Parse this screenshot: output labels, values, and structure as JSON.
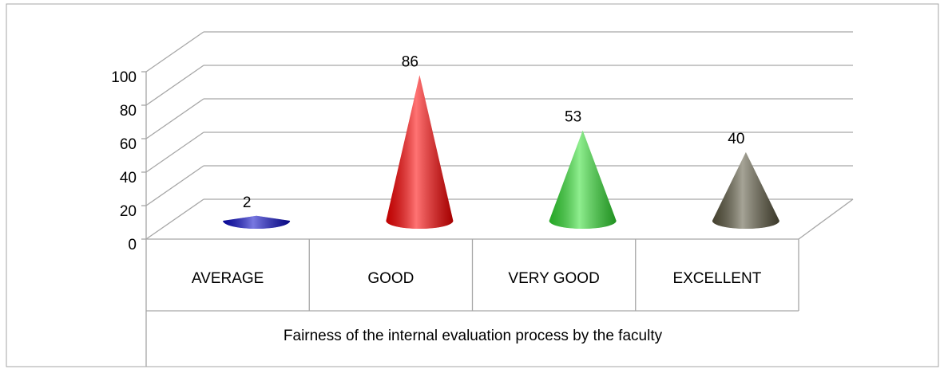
{
  "chart_data": {
    "type": "cone3d",
    "x_label": "Fairness of the internal evaluation process by the faculty",
    "categories": [
      "AVERAGE",
      "GOOD",
      "VERY GOOD",
      "EXCELLENT"
    ],
    "values": [
      2,
      86,
      53,
      40
    ],
    "colors": [
      "#0a0ac8",
      "#ff0000",
      "#33e033",
      "#5c5840"
    ],
    "ylim": [
      0,
      100
    ],
    "yticks": [
      0,
      20,
      40,
      60,
      80,
      100
    ],
    "grid": true
  }
}
